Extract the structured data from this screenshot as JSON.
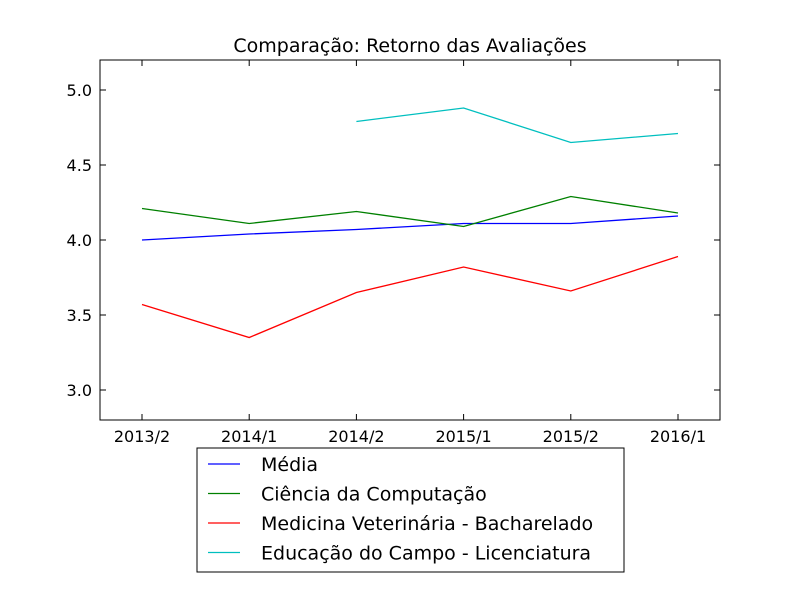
{
  "chart_data": {
    "type": "line",
    "title": "Comparação: Retorno das Avaliações",
    "xlabel": "",
    "ylabel": "",
    "categories": [
      "2013/2",
      "2014/1",
      "2014/2",
      "2015/1",
      "2015/2",
      "2016/1"
    ],
    "ylim": [
      2.8,
      5.2
    ],
    "yticks": [
      "3.0",
      "3.5",
      "4.0",
      "4.5",
      "5.0"
    ],
    "grid": false,
    "legend_position": "bottom-center",
    "series": [
      {
        "name": "Média",
        "color": "#0000ff",
        "values": [
          4.0,
          4.04,
          4.07,
          4.11,
          4.11,
          4.16
        ]
      },
      {
        "name": "Ciência da Computação",
        "color": "#008000",
        "values": [
          4.21,
          4.11,
          4.19,
          4.09,
          4.29,
          4.18
        ]
      },
      {
        "name": "Medicina Veterinária - Bacharelado",
        "color": "#ff0000",
        "values": [
          3.57,
          3.35,
          3.65,
          3.82,
          3.66,
          3.89
        ]
      },
      {
        "name": "Educação do Campo - Licenciatura",
        "color": "#00bfbf",
        "values": [
          null,
          null,
          4.79,
          4.88,
          4.65,
          4.71
        ]
      }
    ]
  }
}
